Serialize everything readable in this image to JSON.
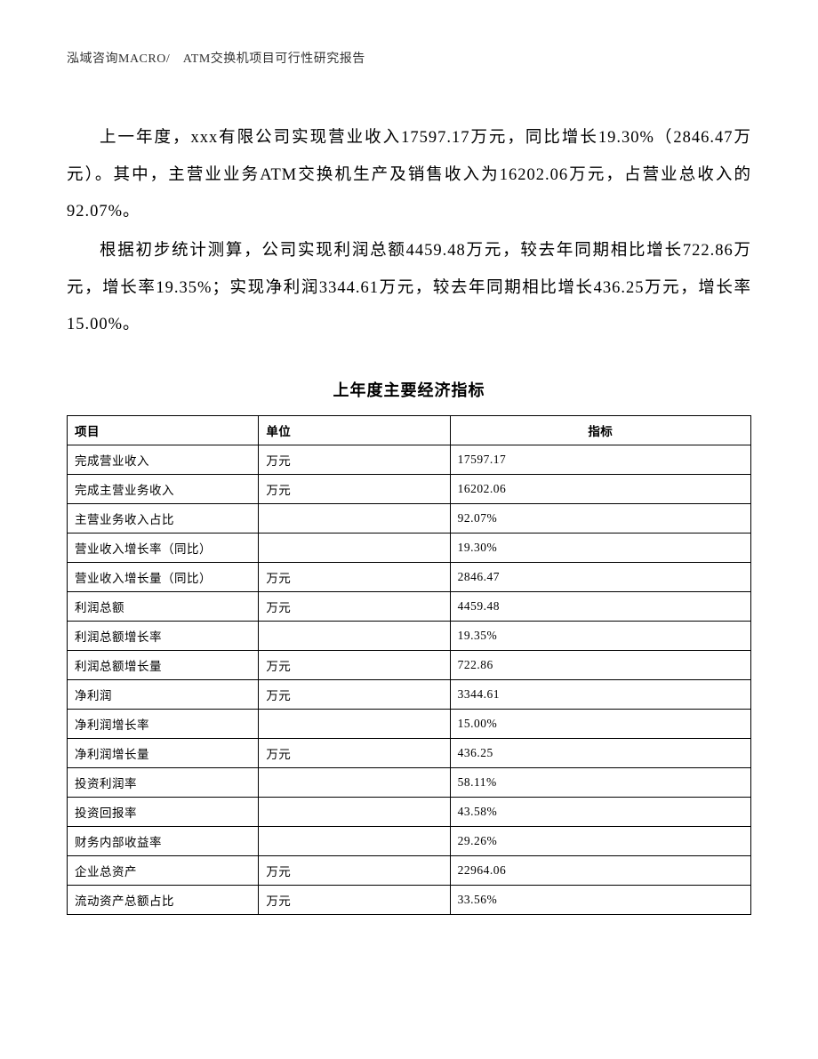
{
  "header": "泓域咨询MACRO/　ATM交换机项目可行性研究报告",
  "paragraphs": [
    "上一年度，xxx有限公司实现营业收入17597.17万元，同比增长19.30%（2846.47万元）。其中，主营业业务ATM交换机生产及销售收入为16202.06万元，占营业总收入的92.07%。",
    "根据初步统计测算，公司实现利润总额4459.48万元，较去年同期相比增长722.86万元，增长率19.35%；实现净利润3344.61万元，较去年同期相比增长436.25万元，增长率15.00%。"
  ],
  "table": {
    "title": "上年度主要经济指标",
    "columns": [
      "项目",
      "单位",
      "指标"
    ],
    "rows": [
      [
        "完成营业收入",
        "万元",
        "17597.17"
      ],
      [
        "完成主营业务收入",
        "万元",
        "16202.06"
      ],
      [
        "主营业务收入占比",
        "",
        "92.07%"
      ],
      [
        "营业收入增长率（同比）",
        "",
        "19.30%"
      ],
      [
        "营业收入增长量（同比）",
        "万元",
        "2846.47"
      ],
      [
        "利润总额",
        "万元",
        "4459.48"
      ],
      [
        "利润总额增长率",
        "",
        "19.35%"
      ],
      [
        "利润总额增长量",
        "万元",
        "722.86"
      ],
      [
        "净利润",
        "万元",
        "3344.61"
      ],
      [
        "净利润增长率",
        "",
        "15.00%"
      ],
      [
        "净利润增长量",
        "万元",
        "436.25"
      ],
      [
        "投资利润率",
        "",
        "58.11%"
      ],
      [
        "投资回报率",
        "",
        "43.58%"
      ],
      [
        "财务内部收益率",
        "",
        "29.26%"
      ],
      [
        "企业总资产",
        "万元",
        "22964.06"
      ],
      [
        "流动资产总额占比",
        "万元",
        "33.56%"
      ]
    ]
  }
}
